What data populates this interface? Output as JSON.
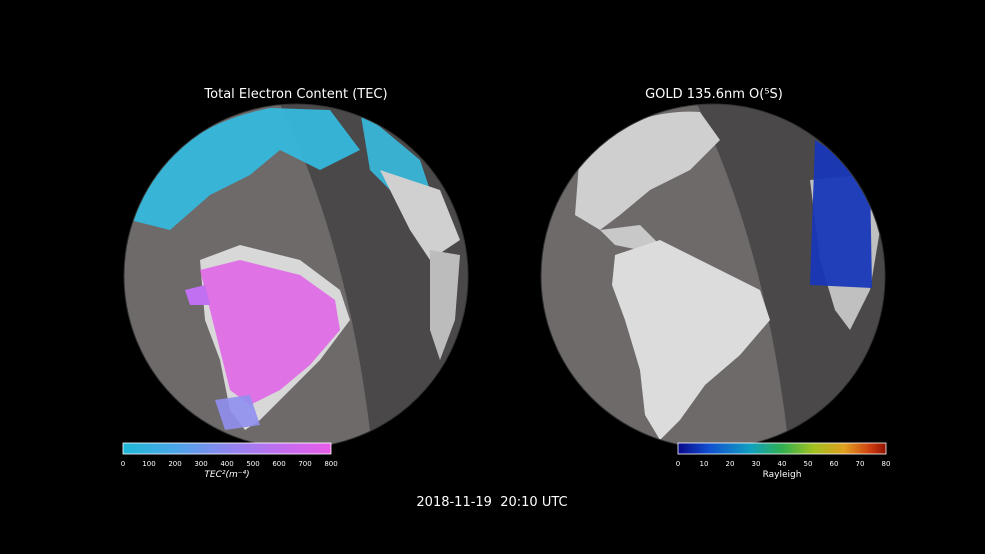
{
  "panels": {
    "left": {
      "title": "Total Electron Content (TEC)",
      "colorbar": {
        "label": "TEC²(m⁻⁴)",
        "ticks": [
          "0",
          "100",
          "200",
          "300",
          "400",
          "500",
          "600",
          "700",
          "800"
        ],
        "colors": [
          "#1fb8d8",
          "#4aa6e8",
          "#8e86f0",
          "#c16ef0",
          "#e85ce8"
        ]
      }
    },
    "right": {
      "title": "GOLD 135.6nm O(⁵S)",
      "colorbar": {
        "label": "Rayleigh",
        "ticks": [
          "0",
          "10",
          "20",
          "30",
          "40",
          "50",
          "60",
          "70",
          "80"
        ],
        "colors": [
          "#08088a",
          "#1050d0",
          "#10a0c0",
          "#30b050",
          "#a0c020",
          "#e0a020",
          "#d04010",
          "#901000"
        ]
      }
    }
  },
  "timestamp": "2018-11-19  20:10 UTC",
  "colors": {
    "background": "#000000",
    "ocean_day": "#6e6a6a",
    "ocean_night": "#4a4848",
    "land": "#d8d8d8"
  }
}
